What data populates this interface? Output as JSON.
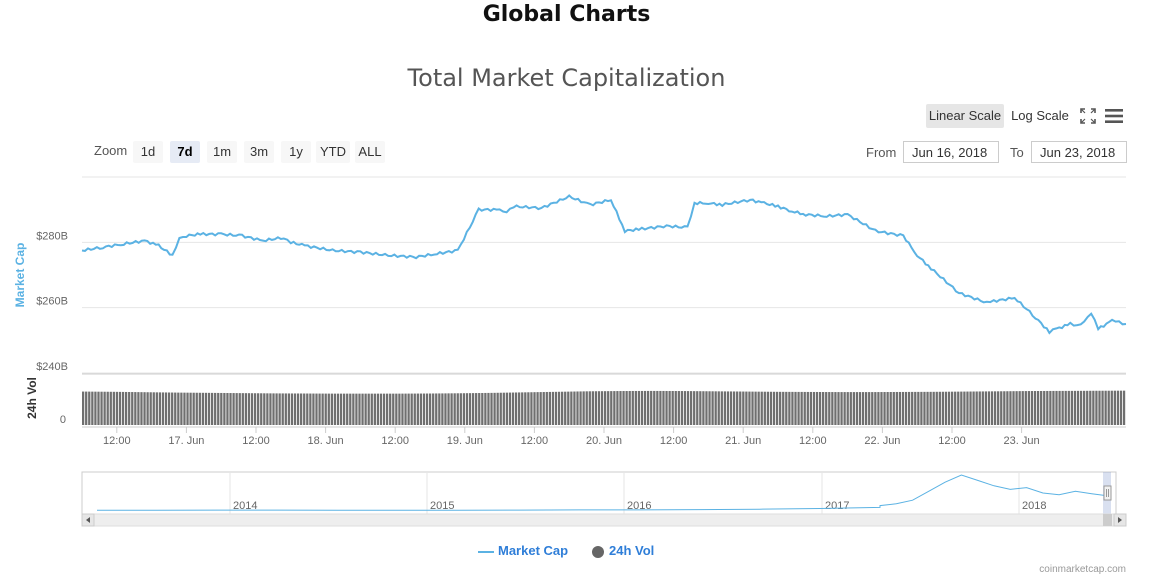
{
  "page": {
    "heading": "Global Charts",
    "credit": "coinmarketcap.com"
  },
  "toolbar": {
    "linear_label": "Linear Scale",
    "log_label": "Log Scale",
    "zoom_label": "Zoom",
    "zoom_buttons": [
      "1d",
      "7d",
      "1m",
      "3m",
      "1y",
      "YTD",
      "ALL"
    ],
    "zoom_selected": "7d",
    "from_label": "From",
    "from_value": "Jun 16, 2018",
    "to_label": "To",
    "to_value": "Jun 23, 2018"
  },
  "legend": {
    "market_cap": "Market Cap",
    "vol": "24h Vol"
  },
  "colors": {
    "market_cap": "#5bb2e3",
    "volume": "#6f6f6f",
    "axis_title_vol": "#333333",
    "navigator_line": "#5bb2e3"
  },
  "chart_data": {
    "type": "line",
    "title": "Total Market Capitalization",
    "ylabel": "Market Cap",
    "ylabel2": "24h Vol",
    "ylim": [
      240,
      300
    ],
    "y_ticks": [
      "$280B",
      "$260B",
      "$240B"
    ],
    "y2_ticks": [
      "0"
    ],
    "x_ticks": [
      "12:00",
      "17. Jun",
      "12:00",
      "18. Jun",
      "12:00",
      "19. Jun",
      "12:00",
      "20. Jun",
      "12:00",
      "21. Jun",
      "12:00",
      "22. Jun",
      "12:00",
      "23. Jun"
    ],
    "x_range_days": [
      16.0,
      23.5
    ],
    "series": [
      {
        "name": "Market Cap",
        "x_days": [
          16.0,
          16.15,
          16.3,
          16.45,
          16.55,
          16.65,
          16.7,
          16.75,
          16.85,
          17.0,
          17.15,
          17.3,
          17.45,
          17.5,
          17.6,
          17.8,
          18.0,
          18.2,
          18.4,
          18.55,
          18.7,
          18.85,
          19.0,
          19.05,
          19.1,
          19.3,
          19.5,
          19.65,
          19.8,
          19.9,
          20.0,
          20.2,
          20.35,
          20.4,
          20.5,
          20.6,
          20.8,
          20.9,
          21.0,
          21.1,
          21.2,
          21.35,
          21.5,
          21.7,
          21.9,
          22.0,
          22.1,
          22.3,
          22.5,
          22.55,
          22.7,
          22.85,
          22.95,
          23.0,
          23.1,
          23.15,
          23.2,
          23.25,
          23.3,
          23.4,
          23.45,
          23.5
        ],
        "values": [
          277.5,
          278.5,
          279.5,
          280.5,
          279,
          276,
          281.5,
          282,
          282.5,
          282.5,
          282,
          280.5,
          281.5,
          280,
          279,
          277.5,
          277,
          276,
          275.5,
          276.5,
          277.5,
          290,
          290,
          289.5,
          291,
          290.5,
          294,
          291.5,
          293,
          283.5,
          284,
          285,
          284.5,
          292,
          292,
          291.5,
          293,
          292,
          291,
          289.5,
          288.5,
          288,
          288.5,
          283.5,
          282,
          276,
          272,
          264.5,
          261.5,
          262,
          263,
          257,
          252.5,
          253.5,
          255,
          254.5,
          256,
          258.5,
          253.5,
          256,
          255.5,
          255
        ],
        "volume_rel": [
          0.88,
          0.86,
          0.83,
          0.8,
          0.78,
          0.76,
          0.74,
          0.73,
          0.72,
          0.72,
          0.72,
          0.73,
          0.75,
          0.78,
          0.82,
          0.86,
          0.9,
          0.92,
          0.93,
          0.92,
          0.9,
          0.88,
          0.86,
          0.85,
          0.84,
          0.84,
          0.85,
          0.86,
          0.88,
          0.9,
          0.92,
          0.93,
          0.94,
          0.95
        ]
      }
    ],
    "navigator": {
      "years": [
        "2014",
        "2015",
        "2016",
        "2017",
        "2018"
      ],
      "values": [
        0.02,
        0.02,
        0.025,
        0.025,
        0.02,
        0.02,
        0.02,
        0.025,
        0.03,
        0.03,
        0.04,
        0.05,
        0.07,
        0.1,
        0.15,
        0.2,
        0.3,
        0.55,
        0.8,
        1.0,
        0.85,
        0.7,
        0.6,
        0.65,
        0.5,
        0.45,
        0.55,
        0.48,
        0.42
      ]
    }
  }
}
